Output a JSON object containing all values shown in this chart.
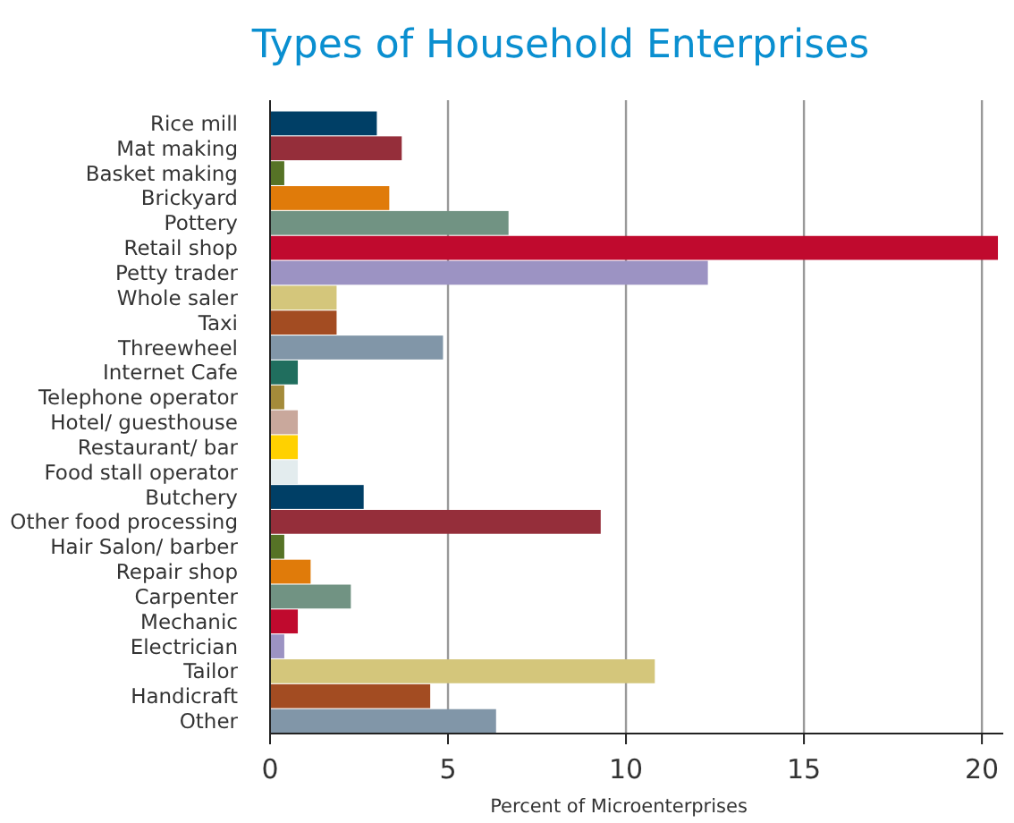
{
  "chart_data": {
    "type": "bar",
    "orientation": "horizontal",
    "title": "Types of Household Enterprises",
    "xlabel": "Percent of Microenterprises",
    "categories": [
      "Rice mill",
      "Mat making",
      "Basket making",
      "Brickyard",
      "Pottery",
      "Retail shop",
      "Petty trader",
      "Whole saler",
      "Taxi",
      "Threewheel",
      "Internet Cafe",
      "Telephone operator",
      "Hotel/ guesthouse",
      "Restaurant/ bar",
      "Food stall operator",
      "Butchery",
      "Other food processing",
      "Hair Salon/ barber",
      "Repair shop",
      "Carpenter",
      "Mechanic",
      "Electrician",
      "Tailor",
      "Handicraft",
      "Other"
    ],
    "values": [
      3.0,
      3.7,
      0.4,
      3.35,
      6.7,
      20.45,
      12.3,
      1.87,
      1.87,
      4.86,
      0.78,
      0.4,
      0.78,
      0.78,
      0.78,
      2.63,
      9.29,
      0.4,
      1.14,
      2.27,
      0.78,
      0.4,
      10.81,
      4.5,
      6.35
    ],
    "colors": [
      "#003f66",
      "#952e3a",
      "#567326",
      "#e07b0a",
      "#719383",
      "#c00a2e",
      "#9c93c3",
      "#d4c67b",
      "#a34c22",
      "#8196a8",
      "#206e5e",
      "#a48b3a",
      "#c9a89c",
      "#ffd100",
      "#e3ecee",
      "#003f66",
      "#952e3a",
      "#567326",
      "#e07b0a",
      "#719383",
      "#c00a2e",
      "#9c93c3",
      "#d4c67b",
      "#a34c22",
      "#8196a8"
    ],
    "xlim": [
      0,
      20.6
    ],
    "xticks": [
      0,
      5,
      10,
      15,
      20
    ],
    "grid": "x"
  }
}
